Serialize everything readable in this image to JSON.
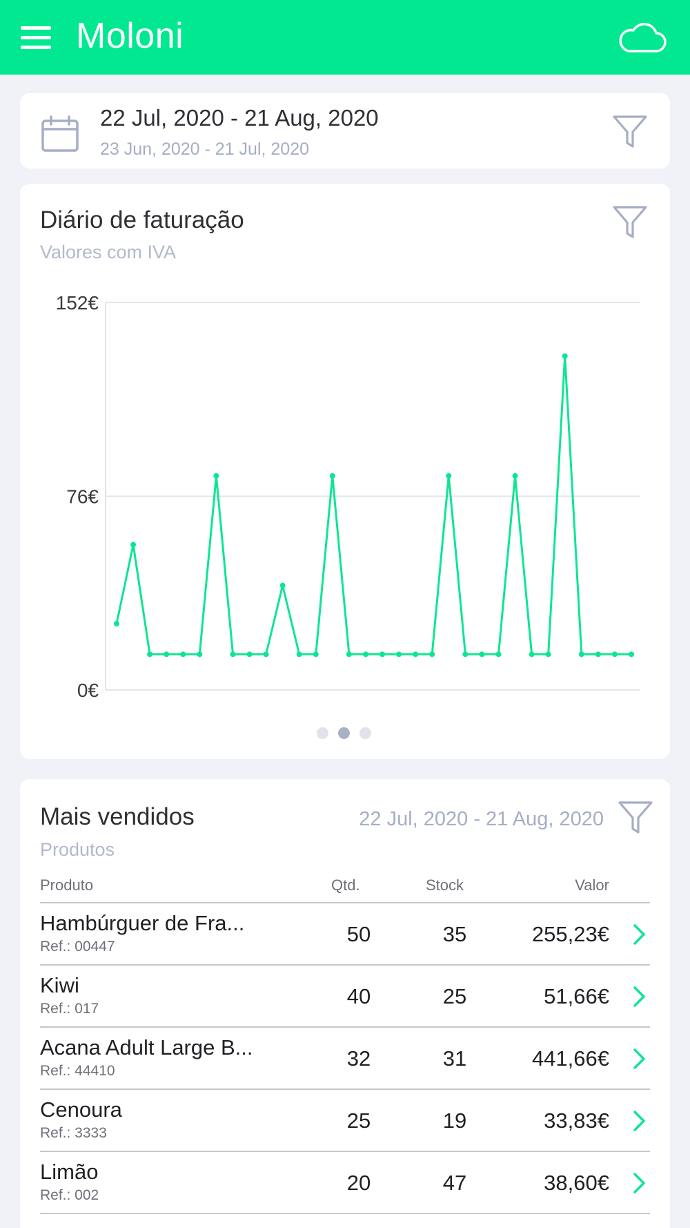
{
  "app": {
    "title": "Moloni",
    "menu_icon": "hamburger-menu-icon",
    "sync_icon": "cloud-icon"
  },
  "colors": {
    "brand": "#02e890",
    "line": "#0ee594",
    "muted": "#a5aec4"
  },
  "date_filter": {
    "range": "22 Jul, 2020 - 21 Aug, 2020",
    "compare_range": "23 Jun, 2020 - 21 Jul, 2020",
    "icon": "calendar-icon",
    "filter_icon": "filter-icon"
  },
  "billing_chart": {
    "title": "Diário de faturação",
    "subtitle": "Valores com IVA",
    "pager": {
      "count": 3,
      "active": 1
    }
  },
  "chart_data": {
    "type": "line",
    "title": "Diário de faturação",
    "subtitle": "Valores com IVA",
    "ylim": [
      0,
      152
    ],
    "yticks": [
      "0€",
      "76€",
      "152€"
    ],
    "grid": true,
    "x": [
      1,
      2,
      3,
      4,
      5,
      6,
      7,
      8,
      9,
      10,
      11,
      12,
      13,
      14,
      15,
      16,
      17,
      18,
      19,
      20,
      21,
      22,
      23,
      24,
      25,
      26,
      27,
      28,
      29,
      30,
      31,
      32
    ],
    "values": [
      26,
      57,
      14,
      14,
      14,
      14,
      84,
      14,
      14,
      14,
      41,
      14,
      14,
      84,
      14,
      14,
      14,
      14,
      14,
      14,
      84,
      14,
      14,
      14,
      84,
      14,
      14,
      131,
      14,
      14,
      14,
      14
    ]
  },
  "top_sellers": {
    "title": "Mais vendidos",
    "subtitle": "Produtos",
    "range": "22 Jul, 2020 - 21 Aug, 2020",
    "columns": {
      "product": "Produto",
      "qty": "Qtd.",
      "stock": "Stock",
      "value": "Valor"
    },
    "rows": [
      {
        "name": "Hambúrguer de Fra...",
        "ref": "Ref.: 00447",
        "qty": "50",
        "stock": "35",
        "value": "255,23€"
      },
      {
        "name": "Kiwi",
        "ref": "Ref.: 017",
        "qty": "40",
        "stock": "25",
        "value": "51,66€"
      },
      {
        "name": "Acana Adult Large B...",
        "ref": "Ref.: 44410",
        "qty": "32",
        "stock": "31",
        "value": "441,66€"
      },
      {
        "name": "Cenoura",
        "ref": "Ref.: 3333",
        "qty": "25",
        "stock": "19",
        "value": "33,83€"
      },
      {
        "name": "Limão",
        "ref": "Ref.: 002",
        "qty": "20",
        "stock": "47",
        "value": "38,60€"
      }
    ]
  }
}
